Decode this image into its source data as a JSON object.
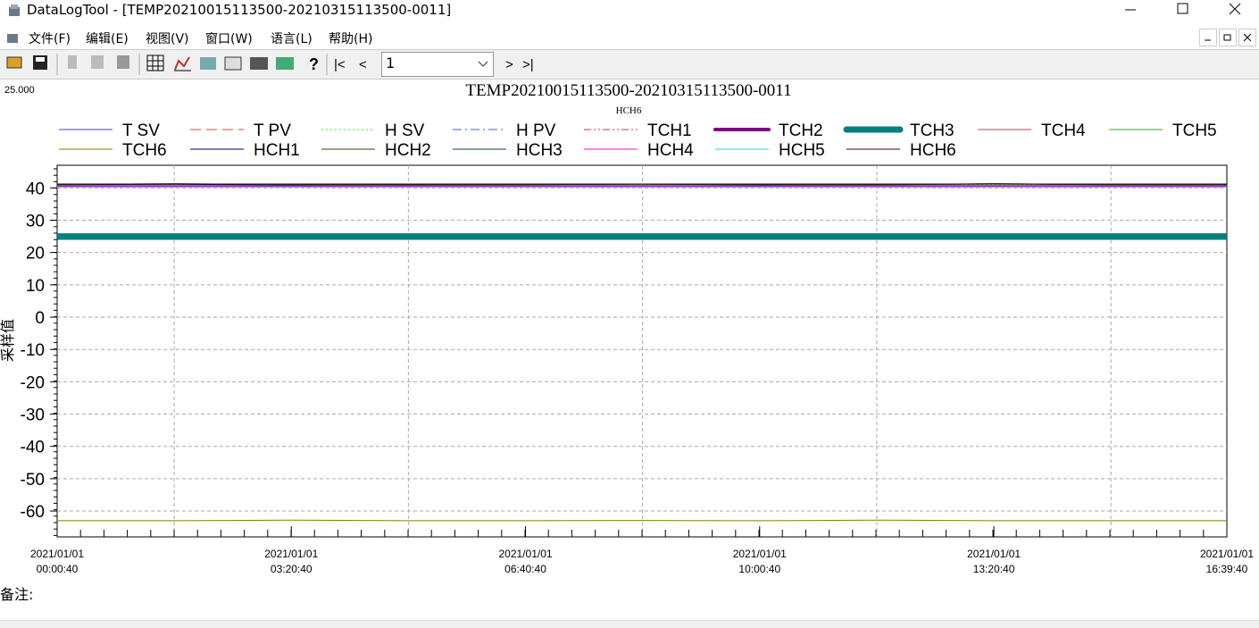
{
  "window": {
    "title": "DataLogTool - [TEMP20210015113500-20210315113500-0011]"
  },
  "menu": [
    "文件(F)",
    "编辑(E)",
    "视图(V)",
    "窗口(W)",
    "语言(L)",
    "帮助(H)"
  ],
  "toolbar": {
    "page": "1"
  },
  "notes_label": "备注:",
  "chart_data": {
    "type": "line",
    "title": "TEMP20210015113500-20210315113500-0011",
    "subtitle": "HCH6",
    "corner_value": "25.000",
    "y_label": "采样值",
    "x": [
      0,
      100,
      200,
      300,
      400,
      500,
      600,
      700,
      800,
      900,
      999
    ],
    "xlim": [
      0,
      999
    ],
    "xticks": [
      {
        "value": 0,
        "label": "2021/01/01\n00:00:40"
      },
      {
        "value": 200,
        "label": "2021/01/01\n03:20:40"
      },
      {
        "value": 400,
        "label": "2021/01/01\n06:40:40"
      },
      {
        "value": 600,
        "label": "2021/01/01\n10:00:40"
      },
      {
        "value": 800,
        "label": "2021/01/01\n13:20:40"
      },
      {
        "value": 999,
        "label": "2021/01/01\n16:39:40"
      }
    ],
    "xgrid": [
      100,
      300,
      500,
      700,
      900
    ],
    "ylim": [
      -68,
      47
    ],
    "yticks": [
      40,
      30,
      20,
      10,
      0,
      -10,
      -20,
      -30,
      -40,
      -50,
      -60
    ],
    "grid": true,
    "series": [
      {
        "name": "T SV",
        "color": "#4040c0",
        "dash": "solid",
        "width": 1,
        "values": [
          25,
          25,
          25,
          25,
          25,
          25,
          25,
          25,
          25,
          25,
          25
        ]
      },
      {
        "name": "T PV",
        "color": "#e04040",
        "dash": "dash",
        "width": 1,
        "values": [
          24.5,
          24.5,
          24.5,
          24.5,
          24.5,
          24.5,
          24.5,
          24.5,
          24.5,
          24.5,
          24.5
        ]
      },
      {
        "name": "H SV",
        "color": "#40e040",
        "dash": "dot",
        "width": 1,
        "values": [
          41,
          41,
          41,
          41,
          41,
          41,
          41,
          41,
          41,
          41,
          41
        ]
      },
      {
        "name": "H PV",
        "color": "#4060c0",
        "dash": "dashdot",
        "width": 1,
        "values": [
          40.5,
          40.5,
          40.5,
          40.5,
          40.5,
          40.5,
          40.5,
          40.5,
          40.5,
          40.5,
          40.5
        ]
      },
      {
        "name": "TCH1",
        "color": "#a04080",
        "dash": "dashdotdot",
        "width": 1,
        "values": [
          24.8,
          24.8,
          24.8,
          24.8,
          25.2,
          24.8,
          24.8,
          24.8,
          24.8,
          24.8,
          24.8
        ]
      },
      {
        "name": "TCH2",
        "color": "#800080",
        "dash": "solid",
        "width": 4,
        "values": [
          24.5,
          24.5,
          24.5,
          24.5,
          24.5,
          24.5,
          24.5,
          24.5,
          24.5,
          24.5,
          24.5
        ]
      },
      {
        "name": "TCH3",
        "color": "#008080",
        "dash": "solid",
        "width": 7,
        "values": [
          25,
          25,
          25,
          25,
          25,
          25,
          25,
          25,
          25,
          25,
          25
        ]
      },
      {
        "name": "TCH4",
        "color": "#a05050",
        "dash": "solid",
        "width": 1,
        "values": [
          41,
          41.2,
          40.8,
          41,
          41,
          41.2,
          40.9,
          41,
          41.3,
          41,
          41
        ]
      },
      {
        "name": "TCH5",
        "color": "#40a040",
        "dash": "solid",
        "width": 1,
        "values": [
          40.8,
          40.8,
          40.8,
          40.8,
          40.8,
          40.8,
          40.8,
          40.8,
          40.8,
          40.8,
          40.8
        ]
      },
      {
        "name": "TCH6",
        "color": "#808000",
        "dash": "solid",
        "width": 1,
        "values": [
          -63,
          -63,
          -62.8,
          -63,
          -63,
          -62.9,
          -63,
          -62.8,
          -63,
          -63,
          -63
        ]
      },
      {
        "name": "HCH1",
        "color": "#000080",
        "dash": "solid",
        "width": 1,
        "values": [
          41,
          41.1,
          40.9,
          41,
          41,
          41.2,
          40.9,
          41,
          41.2,
          41,
          41
        ]
      },
      {
        "name": "HCH2",
        "color": "#404000",
        "dash": "solid",
        "width": 1,
        "values": [
          40.5,
          40.5,
          40.5,
          40.5,
          40.5,
          40.5,
          40.5,
          40.5,
          40.5,
          40.5,
          40.5
        ]
      },
      {
        "name": "HCH3",
        "color": "#004040",
        "dash": "solid",
        "width": 1,
        "values": [
          41,
          41.3,
          41,
          40.9,
          41,
          41.1,
          41,
          40.9,
          41.3,
          41,
          41
        ]
      },
      {
        "name": "HCH4",
        "color": "#ff00ff",
        "dash": "solid",
        "width": 1,
        "values": [
          40.6,
          40.6,
          40.6,
          40.6,
          40.6,
          40.6,
          40.6,
          40.6,
          40.6,
          40.6,
          40.6
        ]
      },
      {
        "name": "HCH5",
        "color": "#00e0e0",
        "dash": "solid",
        "width": 1,
        "values": [
          40.2,
          40.2,
          40.2,
          40.2,
          40.2,
          40.2,
          40.2,
          40.2,
          40.2,
          40.2,
          40.2
        ]
      },
      {
        "name": "HCH6",
        "color": "#400000",
        "dash": "solid",
        "width": 1,
        "values": [
          41.2,
          41.2,
          41.2,
          41.2,
          41.2,
          41.2,
          41.2,
          41.2,
          41.2,
          41.2,
          41.2
        ]
      }
    ]
  }
}
